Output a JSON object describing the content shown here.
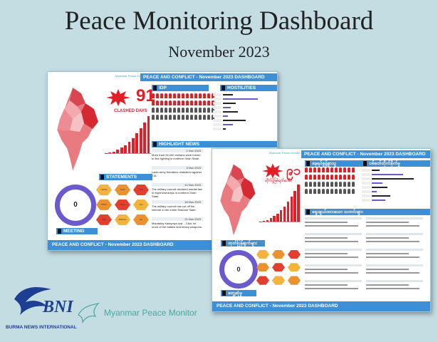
{
  "page": {
    "title": "Peace Monitoring Dashboard",
    "subtitle": "November 2023"
  },
  "card_en": {
    "header": "PEACE AND CONFLICT - November 2023 DASHBOARD",
    "footer": "PEACE AND CONFLICT - November 2023 DASHBOARD",
    "clashed_count": "91",
    "clashed_label": "CLASHED DAYS",
    "idp": "IDP",
    "hostilities": "HOSTILITIES",
    "highlight_news": "HIGHLIGHT NEWS",
    "statements": "STATEMENTS",
    "meeting": "MEETING",
    "meeting_count": "0",
    "news": [
      {
        "date": "1 Nov 2023",
        "text": "More than 26,000 civilians were forced to flee fighting in northern Shan State."
      },
      {
        "date": "4 Nov 2023",
        "text": "Laiza army threatens retaliation against KIA."
      },
      {
        "date": "12 Nov 2023",
        "text": "The military council declared martial law in eight townships in northern Shan State."
      },
      {
        "date": "16 Nov 2023",
        "text": "The military council has cut off the internet in the entire Rakhine State."
      },
      {
        "date": "21 Nov 2023",
        "text": "Mandalay Kalaymyo lost... Click for more of the battles and heavy weapons."
      }
    ],
    "hex_labels": [
      "UWSA",
      "NUG",
      "CSO",
      "PPST",
      "TNLA",
      "KIA",
      "KNU",
      "MNDAA",
      "AA"
    ]
  },
  "card_mm": {
    "header": "PEACE AND CONFLICT - November 2023 DASHBOARD",
    "footer": "PEACE AND CONFLICT - November 2023 DASHBOARD",
    "clashed_count": "၉၁",
    "clashed_label": "တိုက်ပွဲဖြစ်ရက်ပေါင်း",
    "idp": "နေရပ်စွန့်ခွာသူ",
    "hostilities": "ပစ်ခတ်တိုက်ခိုက်မှု",
    "highlight_news": "ရွေးချယ်ထားသော သတင်းများ",
    "statements": "ထုတ်ပြန်ချက်များ",
    "meeting": "တွေ့ဆုံမှု",
    "meeting_count": "0"
  },
  "logos": {
    "bni": "BNI",
    "bni_text": "BURMA NEWS INTERNATIONAL",
    "mpm": "Myanmar Peace Monitor",
    "mpm_small": "Myanmar Peace Monitor"
  },
  "colors": {
    "accent": "#3d8fd6",
    "red": "#e41e26",
    "purple": "#6a5acd",
    "bg": "#c3dde3"
  }
}
